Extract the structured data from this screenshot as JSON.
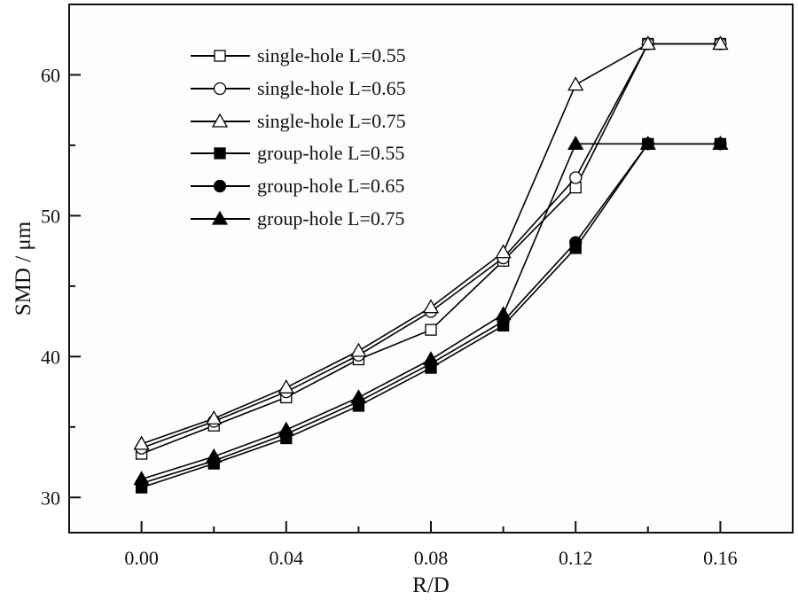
{
  "chart_data": {
    "type": "line",
    "title": "",
    "xlabel": "R/D",
    "ylabel": "SMD / μm",
    "xlim": [
      -0.02,
      0.18
    ],
    "ylim": [
      27.5,
      65
    ],
    "xticks": [
      0.0,
      0.04,
      0.08,
      0.12,
      0.16
    ],
    "xtick_labels": [
      "0.00",
      "0.04",
      "0.08",
      "0.12",
      "0.16"
    ],
    "yticks": [
      30,
      40,
      50,
      60
    ],
    "ytick_labels": [
      "30",
      "40",
      "50",
      "60"
    ],
    "grid": false,
    "legend_position": "top-left",
    "x": [
      0.0,
      0.02,
      0.04,
      0.06,
      0.08,
      0.1,
      0.12,
      0.14,
      0.16
    ],
    "series": [
      {
        "name": "single-hole L=0.55",
        "marker": "square",
        "filled": false,
        "values": [
          33.1,
          35.1,
          37.1,
          39.8,
          41.9,
          46.8,
          52.0,
          62.2,
          62.2
        ]
      },
      {
        "name": "single-hole L=0.65",
        "marker": "circle",
        "filled": false,
        "values": [
          33.5,
          35.4,
          37.5,
          40.1,
          43.2,
          47.0,
          52.7,
          62.2,
          62.2
        ]
      },
      {
        "name": "single-hole L=0.75",
        "marker": "triangle",
        "filled": false,
        "values": [
          33.8,
          35.6,
          37.8,
          40.4,
          43.5,
          47.4,
          59.3,
          62.2,
          62.2
        ]
      },
      {
        "name": "group-hole L=0.55",
        "marker": "square",
        "filled": true,
        "values": [
          30.7,
          32.4,
          34.2,
          36.5,
          39.2,
          42.2,
          47.7,
          55.1,
          55.1
        ]
      },
      {
        "name": "group-hole L=0.65",
        "marker": "circle",
        "filled": true,
        "values": [
          31.0,
          32.6,
          34.5,
          36.8,
          39.5,
          42.5,
          48.1,
          55.1,
          55.1
        ]
      },
      {
        "name": "group-hole L=0.75",
        "marker": "triangle",
        "filled": true,
        "values": [
          31.3,
          32.9,
          34.8,
          37.1,
          39.8,
          43.0,
          55.1,
          55.1,
          55.1
        ]
      }
    ]
  }
}
